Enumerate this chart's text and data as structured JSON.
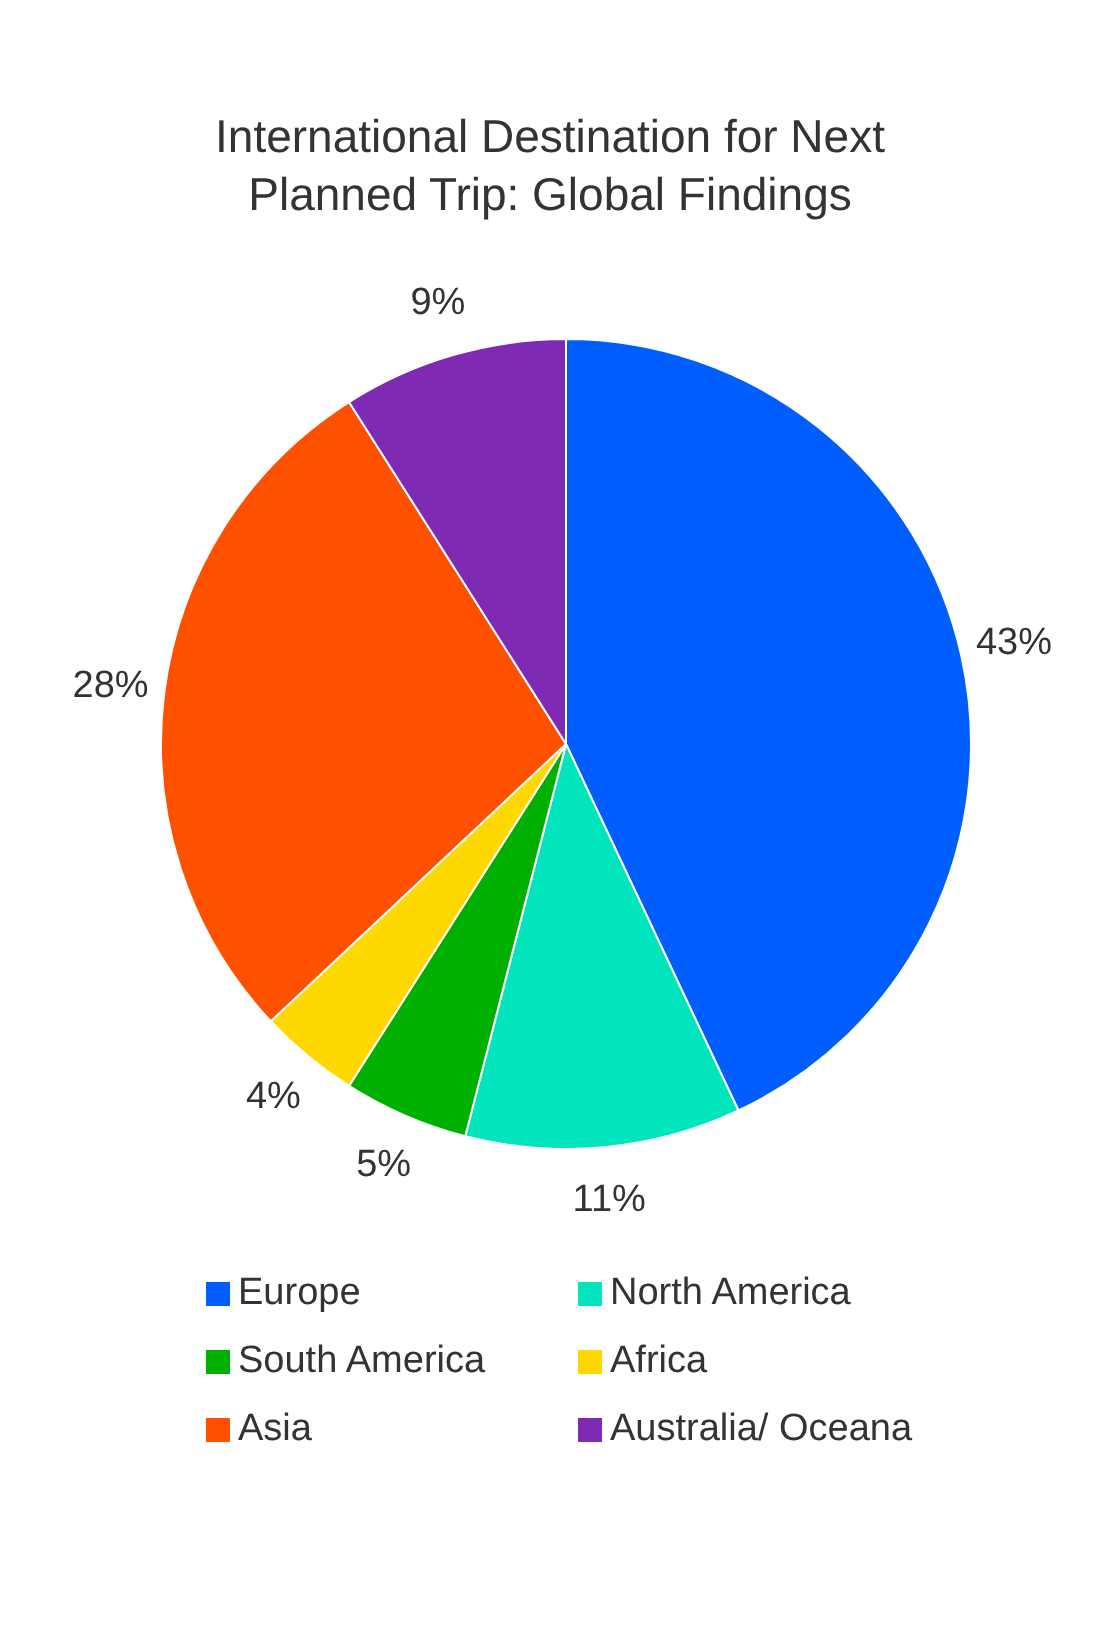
{
  "chart_data": {
    "type": "pie",
    "title": "International Destination for Next Planned Trip: Global Findings",
    "categories": [
      "Europe",
      "North America",
      "South America",
      "Africa",
      "Asia",
      "Australia/ Oceana"
    ],
    "values": [
      43,
      11,
      5,
      4,
      28,
      9
    ],
    "value_labels": [
      "43%",
      "11%",
      "5%",
      "4%",
      "28%",
      "9%"
    ],
    "colors": [
      "#005eff",
      "#00e5bd",
      "#00b000",
      "#ffd800",
      "#ff5000",
      "#7e2ab4"
    ],
    "legend": "bottom"
  }
}
